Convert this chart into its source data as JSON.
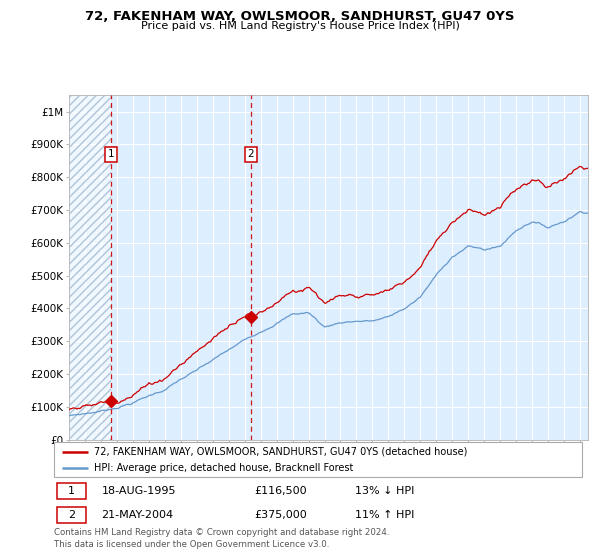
{
  "title": "72, FAKENHAM WAY, OWLSMOOR, SANDHURST, GU47 0YS",
  "subtitle": "Price paid vs. HM Land Registry's House Price Index (HPI)",
  "legend_line1": "72, FAKENHAM WAY, OWLSMOOR, SANDHURST, GU47 0YS (detached house)",
  "legend_line2": "HPI: Average price, detached house, Bracknell Forest",
  "table_row1": [
    "1",
    "18-AUG-1995",
    "£116,500",
    "13% ↓ HPI"
  ],
  "table_row2": [
    "2",
    "21-MAY-2004",
    "£375,000",
    "11% ↑ HPI"
  ],
  "footnote": "Contains HM Land Registry data © Crown copyright and database right 2024.\nThis data is licensed under the Open Government Licence v3.0.",
  "line_red_color": "#cc0000",
  "line_blue_color": "#6699cc",
  "bg_main_color": "#ddeeff",
  "hatch_color": "#b0c4d8",
  "point1_date": 1995.62,
  "point1_value": 116500,
  "point2_date": 2004.38,
  "point2_value": 375000,
  "vline1_x": 1995.62,
  "vline2_x": 2004.38,
  "ylim_max": 1050000,
  "xlim_min": 1993.0,
  "xlim_max": 2025.5,
  "ytick_labels": [
    "£0",
    "£100K",
    "£200K",
    "£300K",
    "£400K",
    "£500K",
    "£600K",
    "£700K",
    "£800K",
    "£900K",
    "£1M"
  ],
  "ytick_values": [
    0,
    100000,
    200000,
    300000,
    400000,
    500000,
    600000,
    700000,
    800000,
    900000,
    1000000
  ],
  "hpi_keypoints_x": [
    1993,
    1994,
    1995,
    1996,
    1997,
    1998,
    1999,
    2000,
    2001,
    2002,
    2003,
    2004,
    2005,
    2006,
    2007,
    2008,
    2009,
    2010,
    2011,
    2012,
    2013,
    2014,
    2015,
    2016,
    2017,
    2018,
    2019,
    2020,
    2021,
    2022,
    2023,
    2024,
    2025
  ],
  "hpi_keypoints_y": [
    72000,
    79000,
    87000,
    100000,
    115000,
    135000,
    155000,
    185000,
    210000,
    240000,
    270000,
    300000,
    330000,
    360000,
    385000,
    390000,
    345000,
    360000,
    365000,
    365000,
    375000,
    400000,
    435000,
    500000,
    560000,
    590000,
    580000,
    590000,
    640000,
    670000,
    650000,
    670000,
    700000
  ],
  "prop_scale1": 1.333,
  "prop_scale2": 1.24,
  "prop_jump_year": 2004.38
}
